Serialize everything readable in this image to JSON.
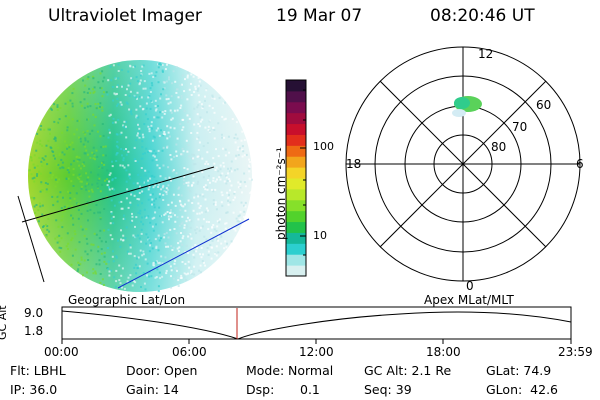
{
  "header": {
    "instrument": "Ultraviolet Imager",
    "date": "19 Mar 07",
    "time": "08:20:46 UT"
  },
  "colorbar": {
    "unit_label": "photon cm⁻²s⁻¹",
    "ticks": [
      "100",
      "10"
    ],
    "colors": [
      "#d8f0f0",
      "#9fe6e6",
      "#2ccfcf",
      "#15b89a",
      "#22c24a",
      "#52d22c",
      "#86e02a",
      "#b8e82a",
      "#e0ea2a",
      "#f4d428",
      "#f2a51c",
      "#ee6a14",
      "#e22e1c",
      "#c80f2c",
      "#a00c3e",
      "#7a0c4e",
      "#50104a",
      "#261034"
    ]
  },
  "polar_plot": {
    "clock_labels": [
      "12",
      "18",
      "6",
      "0"
    ],
    "lat_labels": [
      "60",
      "70",
      "80"
    ]
  },
  "timeline": {
    "y_axis_label": "GC Alt",
    "y_ticks": [
      "9.0",
      "1.8"
    ],
    "left_title": "Geographic Lat/Lon",
    "right_title": "Apex MLat/MLT",
    "x_ticks": [
      "00:00",
      "06:00",
      "12:00",
      "18:00",
      "23:59"
    ]
  },
  "info": {
    "filter": "Flt: LBHL",
    "ip": "IP: 36.0",
    "door": "Door: Open",
    "gain": "Gain: 14",
    "mode_label": "Mode:",
    "mode_value": "Normal",
    "dsp_label": "Dsp:",
    "dsp_value": "0.1",
    "gc_alt": "GC Alt: 2.1 Re",
    "seq": "Seq: 39",
    "glat": "GLat: 74.9",
    "glon": "GLon:  42.6"
  }
}
